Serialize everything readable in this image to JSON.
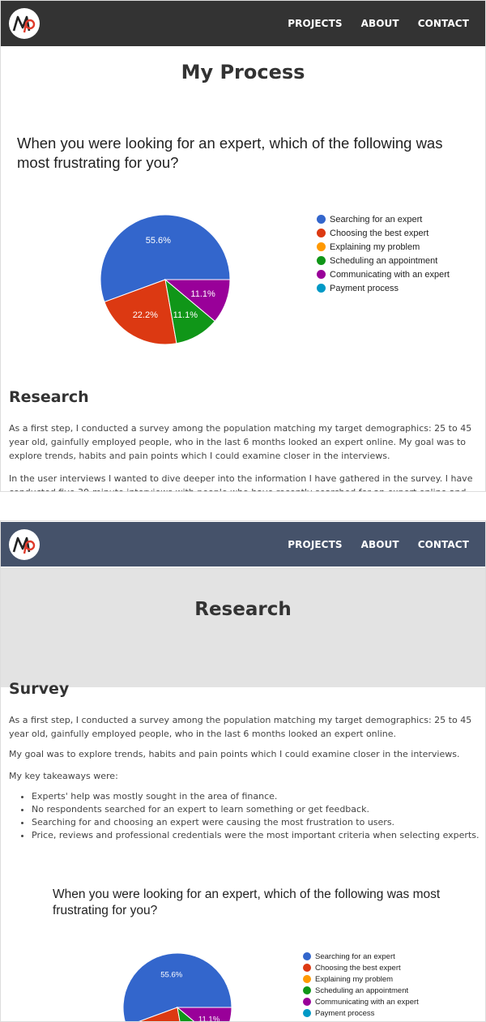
{
  "nav": {
    "projects": "PROJECTS",
    "about": "ABOUT",
    "contact": "CONTACT"
  },
  "screen1": {
    "title": "My Process",
    "question": "When you were looking for an expert, which of the following was most frustrating for you?",
    "research_title": "Research",
    "paragraph1": "As a first step, I conducted a survey among the population matching my target demographics: 25 to 45 year old, gainfully employed people, who in the last 6 months looked an expert online. My goal was to explore trends, habits and pain points which I could examine closer in the interviews.",
    "paragraph2": "In the user interviews I wanted to dive deeper into the information I have gathered in the survey. I have conducted five 30-minute interviews with people who have recently searched for an expert online and who matched my target"
  },
  "screen2": {
    "banner_title": "Research",
    "survey_title": "Survey",
    "paragraph1": "As a first step, I conducted a survey among the population matching my target demographics: 25 to 45 year old, gainfully employed people, who in the last 6 months looked an expert online.",
    "paragraph2": "My goal was to explore trends, habits and pain points which I could examine closer in the interviews.",
    "takeaways_intro": "My key takeaways were:",
    "takeaways": [
      "Experts' help was mostly sought in the area of finance.",
      "No respondents searched for an expert to learn something or get feedback.",
      "Searching for and choosing an expert were causing the most frustration to users.",
      "Price, reviews and professional credentials were the most important criteria when selecting experts."
    ],
    "question": "When you were looking for an expert, which of the following was most frustrating for you?"
  },
  "chart_data": {
    "type": "pie",
    "title": "When you were looking for an expert, which of the following was most frustrating for you?",
    "categories": [
      "Searching for an expert",
      "Choosing the best expert",
      "Explaining my problem",
      "Scheduling an appointment",
      "Communicating with an expert",
      "Payment process"
    ],
    "values": [
      55.6,
      22.2,
      0,
      11.1,
      11.1,
      0
    ],
    "labels": [
      "55.6%",
      "22.2%",
      "",
      "11.1%",
      "11.1%",
      ""
    ],
    "colors": [
      "#3366cc",
      "#dc3912",
      "#ff9900",
      "#109618",
      "#990099",
      "#0099c6"
    ],
    "legend_position": "right"
  }
}
